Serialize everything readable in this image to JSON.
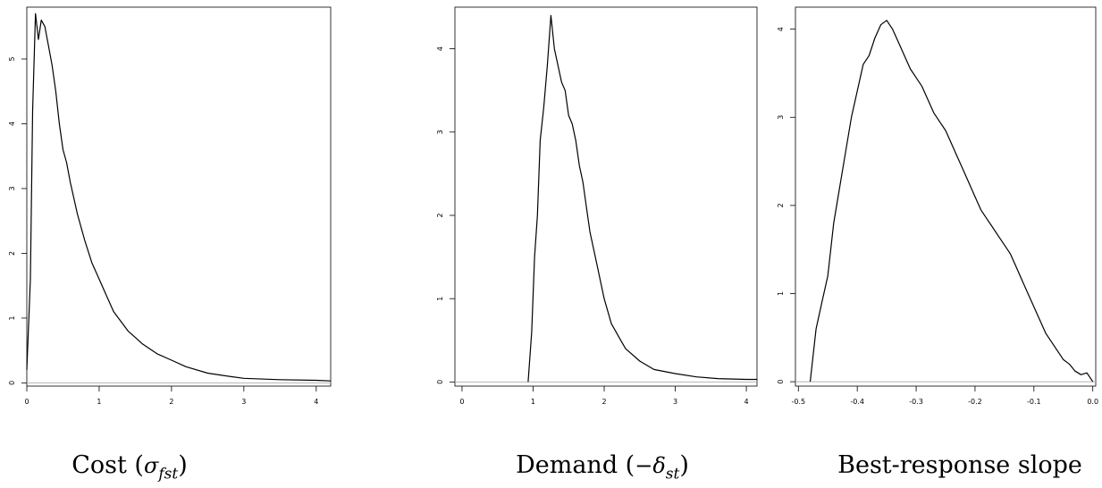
{
  "chart_data": [
    {
      "type": "line",
      "title": "",
      "caption": "Cost (",
      "caption_math": "σ",
      "caption_sub": "fst",
      "caption_close": ")",
      "xlabel": "",
      "ylabel": "",
      "xlim": [
        0,
        4.2
      ],
      "ylim": [
        -0.05,
        5.8
      ],
      "xticks": [
        0,
        1,
        2,
        3,
        4
      ],
      "yticks": [
        0,
        1,
        2,
        3,
        4,
        5
      ],
      "baseline": 0,
      "x": [
        0.0,
        0.05,
        0.08,
        0.12,
        0.16,
        0.2,
        0.25,
        0.3,
        0.35,
        0.4,
        0.45,
        0.5,
        0.55,
        0.6,
        0.7,
        0.8,
        0.9,
        1.0,
        1.1,
        1.2,
        1.3,
        1.4,
        1.5,
        1.6,
        1.8,
        2.0,
        2.2,
        2.5,
        2.8,
        3.0,
        3.5,
        4.0,
        4.2
      ],
      "y": [
        0.2,
        1.6,
        4.2,
        5.7,
        5.3,
        5.6,
        5.5,
        5.2,
        4.9,
        4.5,
        4.0,
        3.6,
        3.4,
        3.1,
        2.6,
        2.2,
        1.85,
        1.6,
        1.35,
        1.1,
        0.95,
        0.8,
        0.7,
        0.6,
        0.45,
        0.35,
        0.25,
        0.15,
        0.1,
        0.07,
        0.05,
        0.04,
        0.03
      ]
    },
    {
      "type": "line",
      "title": "",
      "caption": "Demand (",
      "caption_math": "−δ",
      "caption_sub": "st",
      "caption_close": ")",
      "xlabel": "",
      "ylabel": "",
      "xlim": [
        -0.1,
        4.15
      ],
      "ylim": [
        -0.05,
        4.5
      ],
      "xticks": [
        0,
        1,
        2,
        3,
        4
      ],
      "yticks": [
        0,
        1,
        2,
        3,
        4
      ],
      "baseline": 0,
      "x": [
        0.93,
        0.98,
        1.02,
        1.06,
        1.1,
        1.15,
        1.2,
        1.25,
        1.3,
        1.35,
        1.4,
        1.45,
        1.5,
        1.55,
        1.6,
        1.65,
        1.7,
        1.75,
        1.8,
        1.9,
        2.0,
        2.1,
        2.2,
        2.3,
        2.5,
        2.7,
        3.0,
        3.3,
        3.6,
        4.0,
        4.15
      ],
      "y": [
        0.0,
        0.6,
        1.5,
        2.0,
        2.9,
        3.3,
        3.8,
        4.4,
        4.0,
        3.8,
        3.6,
        3.5,
        3.2,
        3.1,
        2.9,
        2.6,
        2.4,
        2.1,
        1.8,
        1.4,
        1.0,
        0.7,
        0.55,
        0.4,
        0.25,
        0.15,
        0.1,
        0.06,
        0.04,
        0.03,
        0.03
      ]
    },
    {
      "type": "line",
      "title": "",
      "caption": "Best-response slope",
      "caption_math": "",
      "caption_sub": "",
      "caption_close": "",
      "xlabel": "",
      "ylabel": "",
      "xlim": [
        -0.505,
        0.005
      ],
      "ylim": [
        -0.05,
        4.25
      ],
      "xticks": [
        -0.5,
        -0.4,
        -0.3,
        -0.2,
        -0.1,
        0.0
      ],
      "xticklabels": [
        "-0.5",
        "-0.4",
        "-0.3",
        "-0.2",
        "-0.1",
        "0.0"
      ],
      "yticks": [
        0,
        1,
        2,
        3,
        4
      ],
      "baseline": 0,
      "x": [
        -0.48,
        -0.47,
        -0.46,
        -0.45,
        -0.44,
        -0.43,
        -0.42,
        -0.41,
        -0.4,
        -0.39,
        -0.38,
        -0.37,
        -0.36,
        -0.35,
        -0.34,
        -0.33,
        -0.32,
        -0.31,
        -0.3,
        -0.29,
        -0.28,
        -0.27,
        -0.26,
        -0.25,
        -0.24,
        -0.23,
        -0.22,
        -0.21,
        -0.2,
        -0.19,
        -0.18,
        -0.17,
        -0.16,
        -0.15,
        -0.14,
        -0.13,
        -0.12,
        -0.11,
        -0.1,
        -0.09,
        -0.08,
        -0.07,
        -0.06,
        -0.05,
        -0.04,
        -0.03,
        -0.02,
        -0.01,
        0.0
      ],
      "y": [
        0.0,
        0.6,
        0.9,
        1.2,
        1.8,
        2.2,
        2.6,
        3.0,
        3.3,
        3.6,
        3.7,
        3.9,
        4.05,
        4.1,
        4.0,
        3.85,
        3.7,
        3.55,
        3.45,
        3.35,
        3.2,
        3.05,
        2.95,
        2.85,
        2.7,
        2.55,
        2.4,
        2.25,
        2.1,
        1.95,
        1.85,
        1.75,
        1.65,
        1.55,
        1.45,
        1.3,
        1.15,
        1.0,
        0.85,
        0.7,
        0.55,
        0.45,
        0.35,
        0.25,
        0.2,
        0.12,
        0.08,
        0.1,
        0.0
      ]
    }
  ]
}
